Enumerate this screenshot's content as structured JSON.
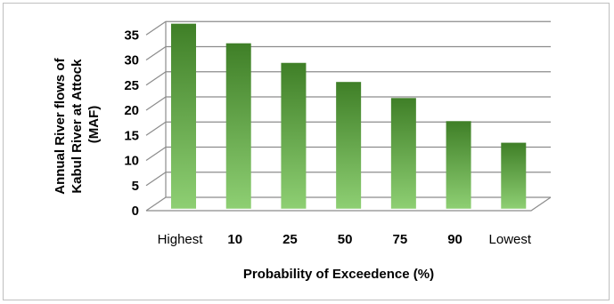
{
  "chart_data": {
    "type": "bar",
    "categories": [
      "Highest",
      "10",
      "25",
      "50",
      "75",
      "90",
      "Lowest"
    ],
    "category_bold": [
      false,
      true,
      true,
      true,
      true,
      true,
      false
    ],
    "values": [
      35.9,
      32.0,
      28.1,
      24.3,
      21.1,
      16.5,
      12.2
    ],
    "xlabel": "Probability of Exceedence (%)",
    "ylabel_lines": [
      "Annual River flows of",
      "Kabul River at Attock",
      "(MAF)"
    ],
    "ylim": [
      0,
      35
    ],
    "yticks": [
      0,
      5,
      10,
      15,
      20,
      25,
      30,
      35
    ],
    "grid": true,
    "style": "3d-bar",
    "colors": {
      "bar_top": "#3f7f27",
      "bar_bottom": "#8ecf73",
      "grid": "#8c8c8c"
    }
  }
}
